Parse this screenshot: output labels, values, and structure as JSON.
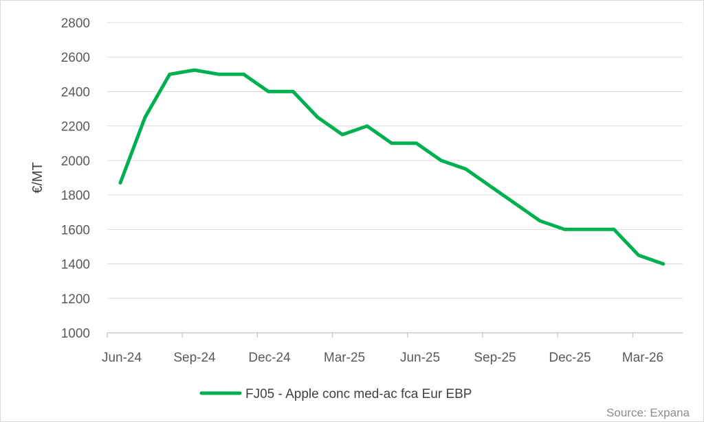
{
  "chart_data": {
    "type": "line",
    "title": "",
    "xlabel": "",
    "ylabel": "€/MT",
    "ylim": [
      1000,
      2800
    ],
    "yticks": [
      1000,
      1200,
      1400,
      1600,
      1800,
      2000,
      2200,
      2400,
      2600,
      2800
    ],
    "grid": true,
    "legend_position": "bottom",
    "x_tick_labels": [
      "Jun-24",
      "Sep-24",
      "Dec-24",
      "Mar-25",
      "Jun-25",
      "Sep-25",
      "Dec-25",
      "Mar-26"
    ],
    "x": [
      "Jun-24",
      "Jul-24",
      "Aug-24",
      "Sep-24",
      "Oct-24",
      "Nov-24",
      "Dec-24",
      "Jan-25",
      "Feb-25",
      "Mar-25",
      "Apr-25",
      "May-25",
      "Jun-25",
      "Jul-25",
      "Aug-25",
      "Sep-25",
      "Oct-25",
      "Nov-25",
      "Dec-25",
      "Jan-26",
      "Feb-26",
      "Mar-26",
      "Apr-26"
    ],
    "series": [
      {
        "name": "FJ05 - Apple conc med-ac fca Eur EBP",
        "color": "#00b050",
        "values": [
          1870,
          2250,
          2500,
          2525,
          2500,
          2500,
          2400,
          2400,
          2250,
          2150,
          2200,
          2100,
          2100,
          2000,
          1950,
          1850,
          1750,
          1650,
          1600,
          1600,
          1600,
          1450,
          1400
        ]
      }
    ],
    "source": "Source: Expana"
  },
  "colors": {
    "series": "#00b050",
    "grid": "#d9d9d9",
    "axis": "#bfbfbf",
    "text": "#595959"
  }
}
